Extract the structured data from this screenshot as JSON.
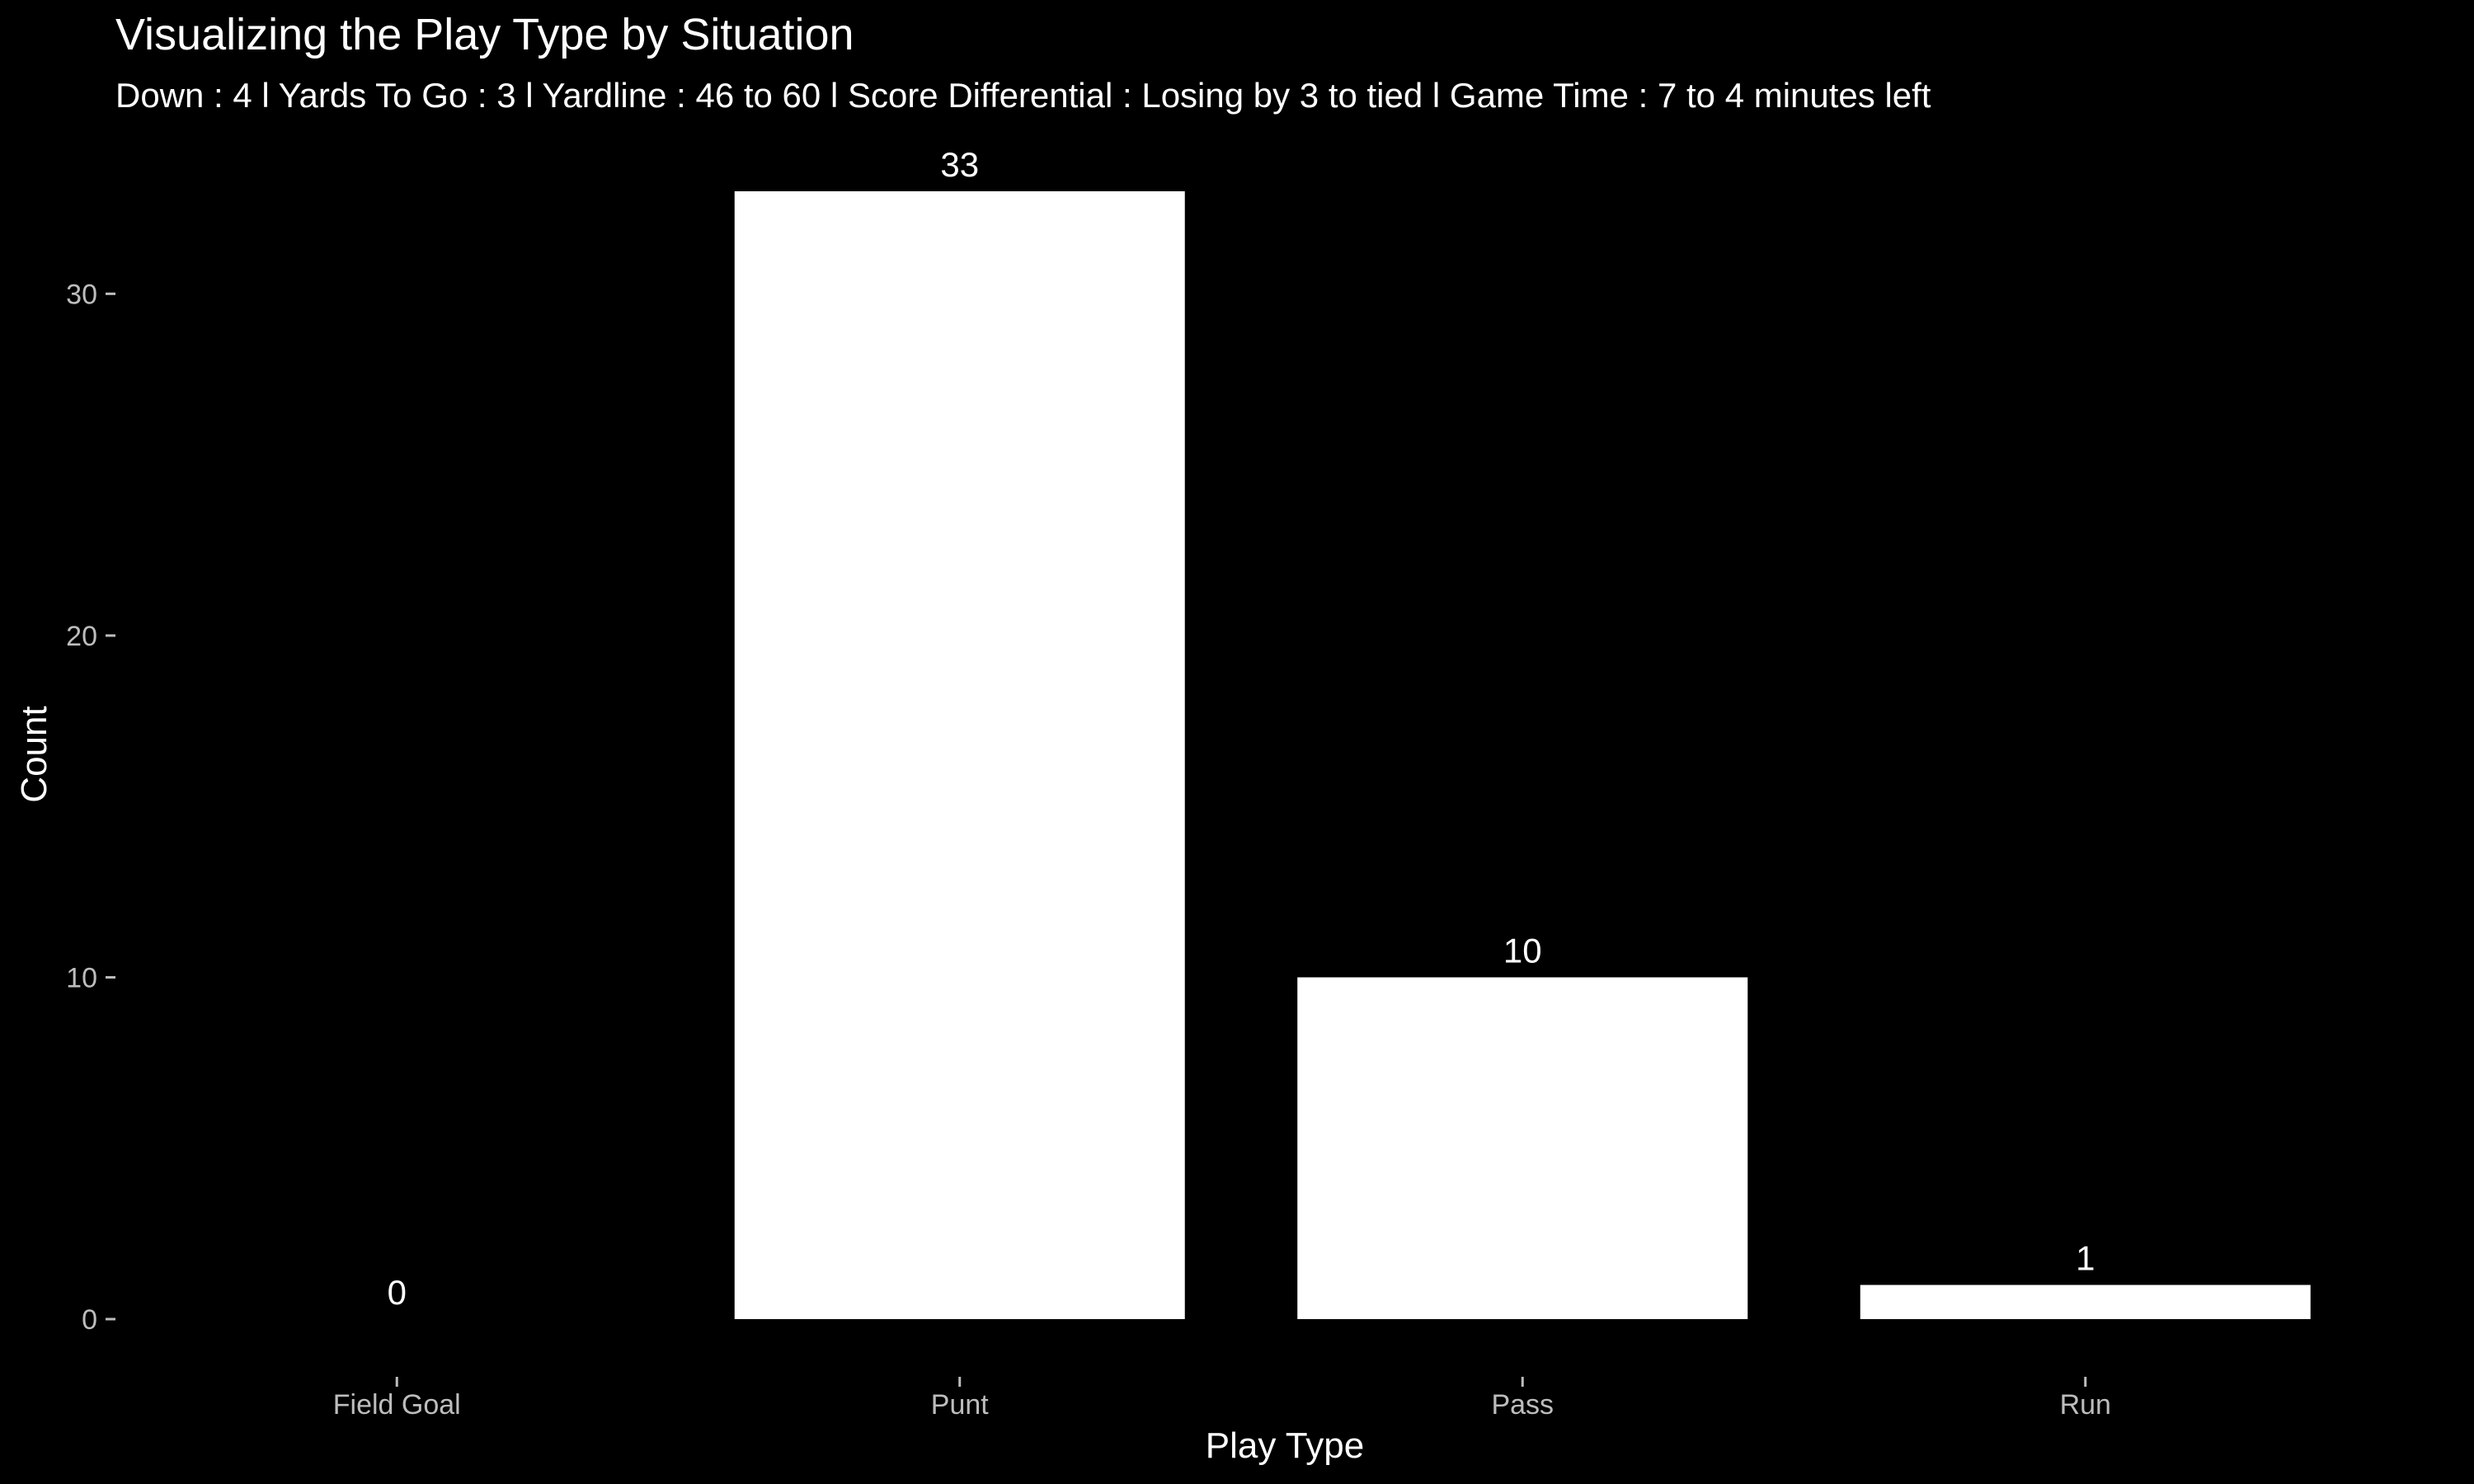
{
  "chart_data": {
    "type": "bar",
    "title": "Visualizing the Play Type by Situation",
    "subtitle": "Down : 4 l Yards To Go : 3 l Yardline : 46 to 60 l Score Differential : Losing by 3 to tied l  Game Time : 7 to 4 minutes left",
    "xlabel": "Play Type",
    "ylabel": "Count",
    "categories": [
      "Field Goal",
      "Punt",
      "Pass",
      "Run"
    ],
    "values": [
      0,
      33,
      10,
      1
    ],
    "ylim": [
      0,
      33
    ],
    "yticks": [
      0,
      10,
      20,
      30
    ],
    "grid": false,
    "legend": "none",
    "colors": {
      "background": "#000000",
      "bar": "#ffffff",
      "text": "#ffffff",
      "tick": "#bdbdbd"
    }
  }
}
